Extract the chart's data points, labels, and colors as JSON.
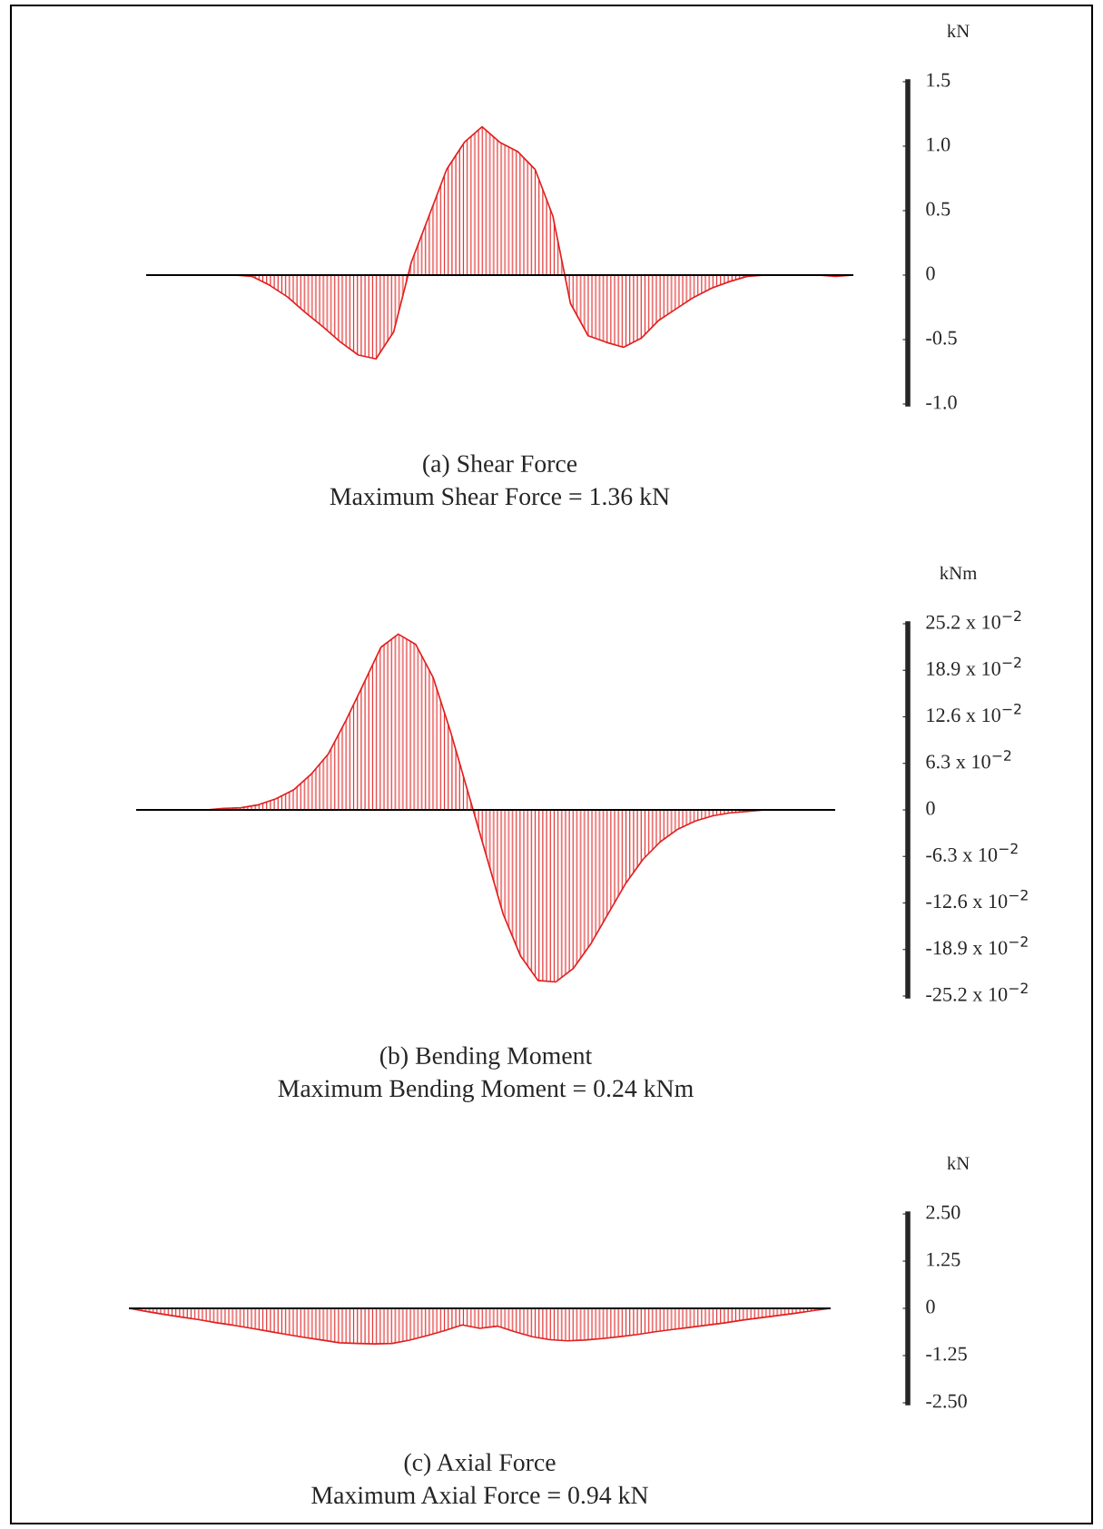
{
  "chart_data": [
    {
      "type": "area",
      "title": "(a) Shear Force",
      "subtitle": "Maximum Shear Force = 1.36 kN",
      "ylabel": "kN",
      "color": "#e02020",
      "tick_labels": "y",
      "categories": [
        null,
        null,
        null,
        null,
        null,
        null,
        null,
        null,
        null,
        null,
        null,
        null,
        null,
        null,
        null,
        null,
        null,
        null,
        null,
        null,
        null,
        null,
        null,
        null,
        null,
        null,
        null,
        null,
        null,
        null,
        null,
        null,
        null,
        null,
        null,
        null,
        null,
        null,
        null,
        null,
        null
      ],
      "values": [
        0,
        0,
        0,
        0,
        0,
        0,
        -0.01,
        -0.08,
        -0.17,
        -0.29,
        -0.4,
        -0.52,
        -0.62,
        -0.65,
        -0.44,
        0.1,
        0.46,
        0.82,
        1.03,
        1.15,
        1.03,
        0.96,
        0.82,
        0.46,
        -0.22,
        -0.47,
        -0.52,
        -0.56,
        -0.49,
        -0.35,
        -0.26,
        -0.17,
        -0.1,
        -0.05,
        -0.01,
        0,
        0,
        0,
        0,
        -0.01,
        0
      ],
      "ylim": [
        -1.0,
        1.5
      ],
      "yticks": [
        {
          "value": 1.5,
          "label": "1.5"
        },
        {
          "value": 1.0,
          "label": "1.0"
        },
        0.5,
        0,
        -0.5,
        {
          "value": -1.0,
          "label": "-1.0"
        }
      ]
    },
    {
      "type": "area",
      "title": "(b) Bending Moment",
      "subtitle": "Maximum Bending Moment = 0.24 kNm",
      "ylabel": "kNm",
      "color": "#e02020",
      "tick_labels": "y",
      "categories": [
        null,
        null,
        null,
        null,
        null,
        null,
        null,
        null,
        null,
        null,
        null,
        null,
        null,
        null,
        null,
        null,
        null,
        null,
        null,
        null,
        null,
        null,
        null,
        null,
        null,
        null,
        null,
        null,
        null,
        null,
        null,
        null,
        null,
        null,
        null,
        null,
        null,
        null,
        null,
        null,
        null
      ],
      "values": [
        0,
        0,
        0,
        0,
        0,
        0.002,
        0.003,
        0.007,
        0.015,
        0.027,
        0.048,
        0.076,
        0.121,
        0.17,
        0.22,
        0.238,
        0.224,
        0.179,
        0.105,
        0.023,
        -0.059,
        -0.141,
        -0.198,
        -0.231,
        -0.233,
        -0.215,
        -0.182,
        -0.141,
        -0.1,
        -0.067,
        -0.043,
        -0.026,
        -0.015,
        -0.008,
        -0.004,
        -0.002,
        0,
        0,
        0,
        0,
        0
      ],
      "ylim": [
        -0.252,
        0.252
      ],
      "yticks": [
        {
          "value": 0.252,
          "label": "25.2 x 10$^{−2}$"
        },
        {
          "value": 0.189,
          "label": "18.9 x 10$^{−2}$"
        },
        {
          "value": 0.126,
          "label": "12.6 x 10$^{−2}$"
        },
        {
          "value": 0.063,
          "label": "6.3 x 10$^{−2}$"
        },
        0,
        {
          "value": -0.063,
          "label": "-6.3 x 10$^{−2}$"
        },
        {
          "value": -0.126,
          "label": "-12.6 x 10$^{−2}$"
        },
        {
          "value": -0.189,
          "label": "-18.9 x 10$^{−2}$"
        },
        {
          "value": -0.252,
          "label": "-25.2 x 10$^{−2}$"
        }
      ]
    },
    {
      "type": "area",
      "title": "(c) Axial Force",
      "subtitle": "Maximum Axial Force = 0.94 kN",
      "ylabel": "kN",
      "color": "#e02020",
      "tick_labels": "y",
      "categories": [
        null,
        null,
        null,
        null,
        null,
        null,
        null,
        null,
        null,
        null,
        null,
        null,
        null,
        null,
        null,
        null,
        null,
        null,
        null,
        null,
        null,
        null,
        null,
        null,
        null,
        null,
        null,
        null,
        null,
        null,
        null,
        null,
        null,
        null,
        null,
        null,
        null,
        null,
        null,
        null,
        null
      ],
      "values": [
        0,
        -0.08,
        -0.16,
        -0.23,
        -0.3,
        -0.38,
        -0.45,
        -0.53,
        -0.61,
        -0.69,
        -0.77,
        -0.84,
        -0.91,
        -0.93,
        -0.94,
        -0.93,
        -0.84,
        -0.72,
        -0.59,
        -0.44,
        -0.53,
        -0.47,
        -0.62,
        -0.75,
        -0.83,
        -0.86,
        -0.84,
        -0.8,
        -0.75,
        -0.69,
        -0.62,
        -0.56,
        -0.5,
        -0.44,
        -0.38,
        -0.31,
        -0.25,
        -0.19,
        -0.13,
        -0.06,
        0
      ],
      "ylim": [
        -2.5,
        2.5
      ],
      "yticks": [
        {
          "value": 2.5,
          "label": "2.50"
        },
        1.25,
        0,
        -1.25,
        {
          "value": -2.5,
          "label": "-2.50"
        }
      ]
    }
  ]
}
